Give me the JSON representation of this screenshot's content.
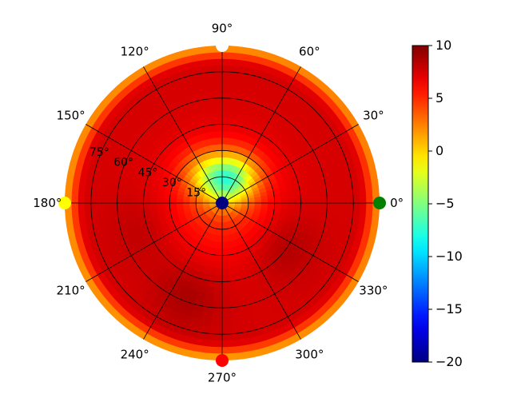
{
  "chart_data": {
    "type": "heatmap",
    "projection": "polar",
    "title": "",
    "angle_unit": "degrees",
    "angular_ticks": [
      "0°",
      "30°",
      "60°",
      "90°",
      "120°",
      "150°",
      "180°",
      "210°",
      "240°",
      "270°",
      "300°",
      "330°"
    ],
    "angular_tick_values": [
      0,
      30,
      60,
      90,
      120,
      150,
      180,
      210,
      240,
      270,
      300,
      330
    ],
    "radial_ticks": [
      "15°",
      "30°",
      "45°",
      "60°",
      "75°"
    ],
    "radial_tick_values": [
      15,
      30,
      45,
      60,
      75
    ],
    "radial_range": [
      0,
      90
    ],
    "grid": true,
    "colormap": "jet",
    "color_range": [
      -20,
      10
    ],
    "colorbar_ticks": [
      "10",
      "5",
      "0",
      "−5",
      "−10",
      "−15",
      "−20"
    ],
    "colorbar_tick_values": [
      10,
      5,
      0,
      -5,
      -10,
      -15,
      -20
    ],
    "colorbar_placement": "right",
    "field_profile": {
      "rim_dB": [
        {
          "theta": 0,
          "r": 90,
          "value": 1.5
        },
        {
          "theta": 90,
          "r": 90,
          "value": 1
        },
        {
          "theta": 180,
          "r": 90,
          "value": 1
        },
        {
          "theta": 270,
          "r": 90,
          "value": 0.5
        }
      ],
      "main_ring": {
        "r_range": [
          35,
          80
        ],
        "value": 7.5
      },
      "hot_lobes": [
        {
          "theta": 325,
          "r": 40,
          "value": 9.2
        },
        {
          "theta": 250,
          "r": 55,
          "value": 9.0
        },
        {
          "theta": 200,
          "r": 45,
          "value": 8.5
        }
      ],
      "center_low": [
        {
          "theta": 85,
          "r": 15,
          "value": -4
        },
        {
          "theta": 120,
          "r": 25,
          "value": -1
        },
        {
          "theta": 60,
          "r": 22,
          "value": -2
        }
      ],
      "warm_center": {
        "theta": 270,
        "r": 10,
        "value": 5
      }
    },
    "markers": [
      {
        "theta": 0,
        "r": 0,
        "color": "#000080"
      },
      {
        "theta": 0,
        "r": 90,
        "color": "#008000"
      },
      {
        "theta": 90,
        "r": 90,
        "color": "#ffffff"
      },
      {
        "theta": 180,
        "r": 90,
        "color": "#ffff00"
      },
      {
        "theta": 270,
        "r": 90,
        "color": "#ff0000"
      }
    ]
  }
}
